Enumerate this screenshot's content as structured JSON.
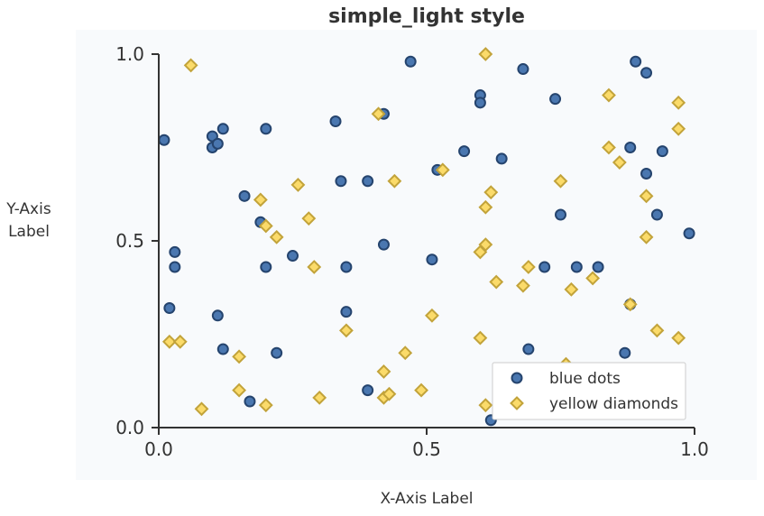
{
  "chart_data": {
    "type": "scatter",
    "title": "simple_light style",
    "xlabel": "X-Axis Label",
    "ylabel": "Y-Axis\nLabel",
    "xlim": [
      0.0,
      1.0
    ],
    "ylim": [
      0.0,
      1.0
    ],
    "xticks": [
      "0.0",
      "0.5",
      "1.0"
    ],
    "yticks": [
      "0.0",
      "0.5",
      "1.0"
    ],
    "grid": false,
    "legend_position": "lower-right",
    "colors": {
      "plot_background": "#f8fafc",
      "axis": "#333333",
      "text": "#333333",
      "legend_border": "#cccccc"
    },
    "series": [
      {
        "name": "blue dots",
        "marker": "circle",
        "color": "#4a77b0",
        "edge_color": "#25446e",
        "points": [
          [
            0.01,
            0.77
          ],
          [
            0.03,
            0.47
          ],
          [
            0.03,
            0.43
          ],
          [
            0.02,
            0.32
          ],
          [
            0.1,
            0.78
          ],
          [
            0.1,
            0.75
          ],
          [
            0.11,
            0.76
          ],
          [
            0.12,
            0.8
          ],
          [
            0.16,
            0.62
          ],
          [
            0.19,
            0.55
          ],
          [
            0.2,
            0.43
          ],
          [
            0.2,
            0.8
          ],
          [
            0.25,
            0.46
          ],
          [
            0.22,
            0.2
          ],
          [
            0.11,
            0.3
          ],
          [
            0.12,
            0.21
          ],
          [
            0.17,
            0.07
          ],
          [
            0.33,
            0.82
          ],
          [
            0.34,
            0.66
          ],
          [
            0.35,
            0.43
          ],
          [
            0.35,
            0.31
          ],
          [
            0.39,
            0.66
          ],
          [
            0.39,
            0.1
          ],
          [
            0.42,
            0.84
          ],
          [
            0.42,
            0.49
          ],
          [
            0.47,
            0.98
          ],
          [
            0.51,
            0.45
          ],
          [
            0.52,
            0.69
          ],
          [
            0.57,
            0.74
          ],
          [
            0.6,
            0.89
          ],
          [
            0.6,
            0.87
          ],
          [
            0.64,
            0.72
          ],
          [
            0.68,
            0.96
          ],
          [
            0.69,
            0.21
          ],
          [
            0.72,
            0.43
          ],
          [
            0.74,
            0.88
          ],
          [
            0.75,
            0.57
          ],
          [
            0.78,
            0.43
          ],
          [
            0.82,
            0.43
          ],
          [
            0.87,
            0.2
          ],
          [
            0.88,
            0.33
          ],
          [
            0.88,
            0.75
          ],
          [
            0.89,
            0.98
          ],
          [
            0.91,
            0.95
          ],
          [
            0.91,
            0.68
          ],
          [
            0.93,
            0.57
          ],
          [
            0.94,
            0.74
          ],
          [
            0.99,
            0.52
          ],
          [
            0.62,
            0.02
          ]
        ]
      },
      {
        "name": "yellow diamonds",
        "marker": "diamond",
        "color": "#fbdb6a",
        "edge_color": "#c2a33a",
        "points": [
          [
            0.06,
            0.97
          ],
          [
            0.02,
            0.23
          ],
          [
            0.04,
            0.23
          ],
          [
            0.08,
            0.05
          ],
          [
            0.15,
            0.19
          ],
          [
            0.15,
            0.1
          ],
          [
            0.19,
            0.61
          ],
          [
            0.2,
            0.54
          ],
          [
            0.22,
            0.51
          ],
          [
            0.2,
            0.06
          ],
          [
            0.26,
            0.65
          ],
          [
            0.28,
            0.56
          ],
          [
            0.29,
            0.43
          ],
          [
            0.3,
            0.08
          ],
          [
            0.35,
            0.26
          ],
          [
            0.41,
            0.84
          ],
          [
            0.42,
            0.15
          ],
          [
            0.42,
            0.08
          ],
          [
            0.43,
            0.09
          ],
          [
            0.44,
            0.66
          ],
          [
            0.46,
            0.2
          ],
          [
            0.49,
            0.1
          ],
          [
            0.51,
            0.3
          ],
          [
            0.53,
            0.69
          ],
          [
            0.6,
            0.47
          ],
          [
            0.6,
            0.24
          ],
          [
            0.61,
            1.0
          ],
          [
            0.61,
            0.59
          ],
          [
            0.61,
            0.49
          ],
          [
            0.62,
            0.63
          ],
          [
            0.63,
            0.39
          ],
          [
            0.61,
            0.06
          ],
          [
            0.68,
            0.38
          ],
          [
            0.69,
            0.43
          ],
          [
            0.75,
            0.66
          ],
          [
            0.76,
            0.17
          ],
          [
            0.77,
            0.37
          ],
          [
            0.81,
            0.4
          ],
          [
            0.84,
            0.89
          ],
          [
            0.84,
            0.75
          ],
          [
            0.86,
            0.71
          ],
          [
            0.88,
            0.33
          ],
          [
            0.91,
            0.62
          ],
          [
            0.91,
            0.51
          ],
          [
            0.93,
            0.26
          ],
          [
            0.97,
            0.87
          ],
          [
            0.97,
            0.8
          ],
          [
            0.97,
            0.24
          ]
        ]
      }
    ]
  }
}
